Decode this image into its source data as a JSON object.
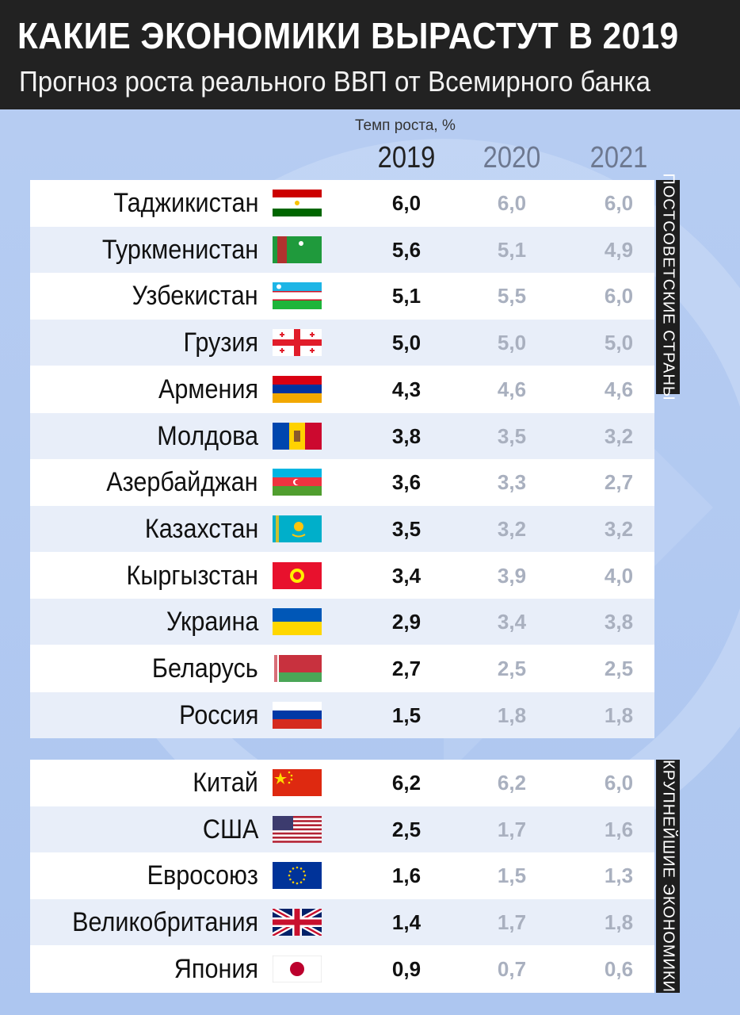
{
  "header": {
    "title": "КАКИЕ ЭКОНОМИКИ ВЫРАСТУТ В 2019",
    "subtitle": "Прогноз роста реального ВВП от Всемирного банка"
  },
  "chart_data": {
    "type": "table",
    "caption": "Темп роста, %",
    "columns": [
      "2019",
      "2020",
      "2021"
    ],
    "groups": [
      {
        "label": "ПОСТСОВЕТСКИЕ СТРАНЫ",
        "rows": [
          {
            "country": "Таджикистан",
            "flag": "tajikistan-flag-icon",
            "v2019": "6,0",
            "v2020": "6,0",
            "v2021": "6,0"
          },
          {
            "country": "Туркменистан",
            "flag": "turkmenistan-flag-icon",
            "v2019": "5,6",
            "v2020": "5,1",
            "v2021": "4,9"
          },
          {
            "country": "Узбекистан",
            "flag": "uzbekistan-flag-icon",
            "v2019": "5,1",
            "v2020": "5,5",
            "v2021": "6,0"
          },
          {
            "country": "Грузия",
            "flag": "georgia-flag-icon",
            "v2019": "5,0",
            "v2020": "5,0",
            "v2021": "5,0"
          },
          {
            "country": "Армения",
            "flag": "armenia-flag-icon",
            "v2019": "4,3",
            "v2020": "4,6",
            "v2021": "4,6"
          },
          {
            "country": "Молдова",
            "flag": "moldova-flag-icon",
            "v2019": "3,8",
            "v2020": "3,5",
            "v2021": "3,2"
          },
          {
            "country": "Азербайджан",
            "flag": "azerbaijan-flag-icon",
            "v2019": "3,6",
            "v2020": "3,3",
            "v2021": "2,7"
          },
          {
            "country": "Казахстан",
            "flag": "kazakhstan-flag-icon",
            "v2019": "3,5",
            "v2020": "3,2",
            "v2021": "3,2"
          },
          {
            "country": "Кыргызстан",
            "flag": "kyrgyzstan-flag-icon",
            "v2019": "3,4",
            "v2020": "3,9",
            "v2021": "4,0"
          },
          {
            "country": "Украина",
            "flag": "ukraine-flag-icon",
            "v2019": "2,9",
            "v2020": "3,4",
            "v2021": "3,8"
          },
          {
            "country": "Беларусь",
            "flag": "belarus-flag-icon",
            "v2019": "2,7",
            "v2020": "2,5",
            "v2021": "2,5"
          },
          {
            "country": "Россия",
            "flag": "russia-flag-icon",
            "v2019": "1,5",
            "v2020": "1,8",
            "v2021": "1,8"
          }
        ]
      },
      {
        "label": "КРУПНЕЙШИЕ ЭКОНОМИКИ",
        "rows": [
          {
            "country": "Китай",
            "flag": "china-flag-icon",
            "v2019": "6,2",
            "v2020": "6,2",
            "v2021": "6,0"
          },
          {
            "country": "США",
            "flag": "usa-flag-icon",
            "v2019": "2,5",
            "v2020": "1,7",
            "v2021": "1,6"
          },
          {
            "country": "Евросоюз",
            "flag": "eu-flag-icon",
            "v2019": "1,6",
            "v2020": "1,5",
            "v2021": "1,3"
          },
          {
            "country": "Великобритания",
            "flag": "uk-flag-icon",
            "v2019": "1,4",
            "v2020": "1,7",
            "v2021": "1,8"
          },
          {
            "country": "Япония",
            "flag": "japan-flag-icon",
            "v2019": "0,9",
            "v2020": "0,7",
            "v2021": "0,6"
          }
        ]
      }
    ]
  }
}
